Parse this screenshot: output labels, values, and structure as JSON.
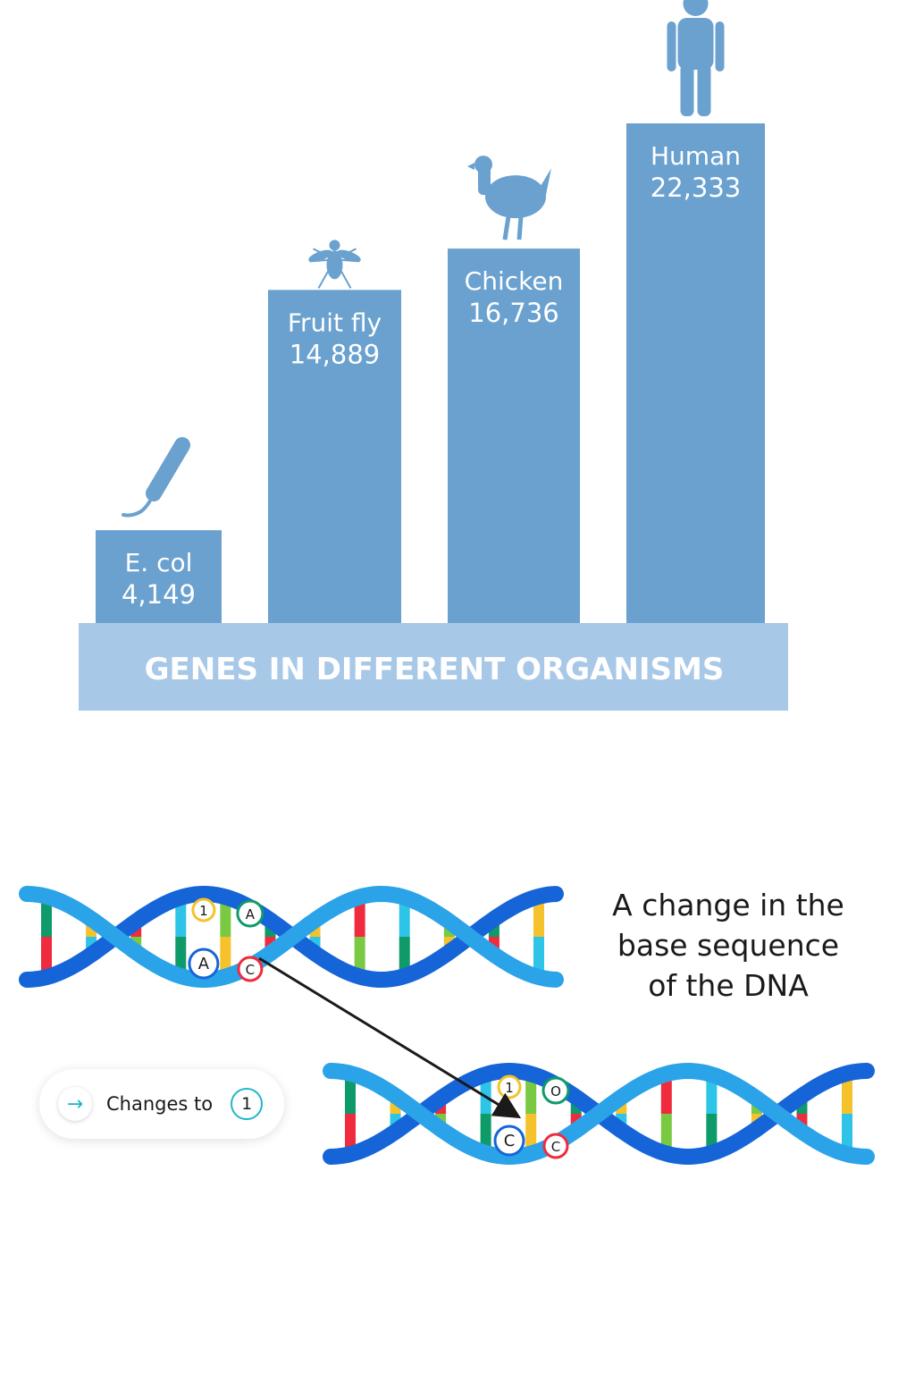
{
  "chart_data": {
    "type": "bar",
    "title": "GENES IN DIFFERENT ORGANISMS",
    "categories": [
      "E. col",
      "Fruit fly",
      "Chicken",
      "Human"
    ],
    "values": [
      4149,
      14889,
      16736,
      22333
    ],
    "value_labels": [
      "4,149",
      "14,889",
      "16,736",
      "22,333"
    ],
    "icons": [
      "bacterium-icon",
      "fruit-fly-icon",
      "chicken-icon",
      "human-icon"
    ],
    "ylim": [
      0,
      25000
    ],
    "grid": false,
    "colors": {
      "bar": "#6aa1cf",
      "base": "#a8c8e8",
      "title_text": "#ffffff"
    }
  },
  "dna": {
    "caption_lines": [
      "A change in the",
      "base sequence",
      "of the DNA"
    ],
    "legend": {
      "text": "Changes to",
      "badge": "1",
      "arrow": "→"
    },
    "original_labels": [
      "1",
      "A",
      "A",
      "C"
    ],
    "mutated_labels": [
      "1",
      "O",
      "C",
      "C"
    ],
    "colors": {
      "backbone_dark": "#1565d8",
      "backbone_light": "#2aa3e8",
      "base_colors": [
        "#0f9a6a",
        "#f5c22b",
        "#ef2b3d",
        "#2ec4e8",
        "#7ac943"
      ]
    }
  }
}
